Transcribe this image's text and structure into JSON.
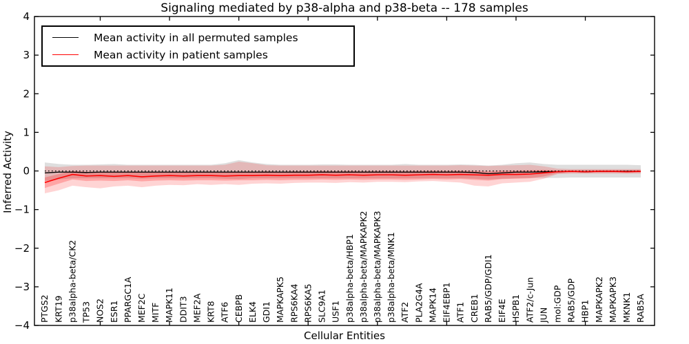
{
  "chart_data": {
    "type": "line",
    "title": "Signaling mediated by p38-alpha and p38-beta -- 178 samples",
    "xlabel": "Cellular Entities",
    "ylabel": "Inferred Activity",
    "ylim": [
      -4,
      4
    ],
    "grid": false,
    "ytick_values": [
      4,
      3,
      2,
      1,
      0,
      -1,
      -2,
      -3,
      -4
    ],
    "ytick_labels": [
      "4",
      "3",
      "2",
      "1",
      "0",
      "−1",
      "−2",
      "−3",
      "−4"
    ],
    "zero_line": {
      "value": 0,
      "style": "dotted",
      "color": "#000000"
    },
    "entities": [
      "PTGS2",
      "KRT19",
      "p38alpha-beta/CK2",
      "TP53",
      "NOS2",
      "ESR1",
      "PPARGC1A",
      "MEF2C",
      "MITF",
      "MAPK11",
      "DDIT3",
      "MEF2A",
      "KRT8",
      "ATF6",
      "CEBPB",
      "ELK4",
      "GDI1",
      "MAPKAPK5",
      "RPS6KA4",
      "RPS6KA5",
      "SLC9A1",
      "USF1",
      "p38alpha-beta/HBP1",
      "p38alpha-beta/MAPKAPK2",
      "p38alpha-beta/MAPKAPK3",
      "p38alpha-beta/MNK1",
      "ATF2",
      "PLA2G4A",
      "MAPK14",
      "EIF4EBP1",
      "ATF1",
      "CREB1",
      "RAB5/GDP/GDI1",
      "EIF4E",
      "HSPB1",
      "ATF2/c-Jun",
      "JUN",
      "mol:GDP",
      "RAB5/GDP",
      "HBP1",
      "MAPKAPK2",
      "MAPKAPK3",
      "MKNK1",
      "RAB5A"
    ],
    "series": [
      {
        "name": "Mean activity in all permuted samples",
        "color": "#000000",
        "values": [
          -0.05,
          -0.03,
          -0.03,
          -0.04,
          -0.03,
          -0.03,
          -0.03,
          -0.03,
          -0.03,
          -0.03,
          -0.03,
          -0.03,
          -0.03,
          -0.03,
          -0.03,
          -0.03,
          -0.03,
          -0.03,
          -0.03,
          -0.03,
          -0.03,
          -0.03,
          -0.03,
          -0.03,
          -0.03,
          -0.03,
          -0.03,
          -0.03,
          -0.03,
          -0.03,
          -0.03,
          -0.04,
          -0.07,
          -0.05,
          -0.03,
          -0.03,
          -0.02,
          -0.02,
          -0.01,
          -0.02,
          -0.01,
          -0.01,
          -0.01,
          -0.01
        ]
      },
      {
        "name": "Mean activity in patient samples",
        "color": "#ff0000",
        "values": [
          -0.3,
          -0.19,
          -0.09,
          -0.13,
          -0.12,
          -0.14,
          -0.12,
          -0.15,
          -0.13,
          -0.12,
          -0.13,
          -0.12,
          -0.12,
          -0.13,
          -0.12,
          -0.12,
          -0.11,
          -0.12,
          -0.11,
          -0.11,
          -0.1,
          -0.11,
          -0.1,
          -0.11,
          -0.1,
          -0.1,
          -0.11,
          -0.1,
          -0.09,
          -0.1,
          -0.09,
          -0.1,
          -0.11,
          -0.09,
          -0.09,
          -0.08,
          -0.05,
          -0.02,
          -0.01,
          -0.02,
          -0.01,
          -0.01,
          -0.02,
          -0.01
        ]
      }
    ],
    "bands": [
      {
        "name": "permuted-samples-band",
        "color": "#000000",
        "opacity": 0.13,
        "upper": [
          0.22,
          0.18,
          0.16,
          0.16,
          0.17,
          0.18,
          0.16,
          0.16,
          0.16,
          0.16,
          0.16,
          0.16,
          0.16,
          0.2,
          0.28,
          0.22,
          0.18,
          0.16,
          0.16,
          0.16,
          0.17,
          0.17,
          0.16,
          0.16,
          0.16,
          0.16,
          0.18,
          0.16,
          0.16,
          0.16,
          0.17,
          0.16,
          0.14,
          0.16,
          0.2,
          0.22,
          0.18,
          0.16,
          0.16,
          0.16,
          0.16,
          0.16,
          0.16,
          0.15
        ],
        "lower": [
          -0.26,
          -0.22,
          -0.19,
          -0.19,
          -0.19,
          -0.19,
          -0.19,
          -0.2,
          -0.19,
          -0.19,
          -0.19,
          -0.19,
          -0.19,
          -0.2,
          -0.21,
          -0.19,
          -0.19,
          -0.19,
          -0.19,
          -0.19,
          -0.19,
          -0.19,
          -0.19,
          -0.19,
          -0.19,
          -0.19,
          -0.19,
          -0.19,
          -0.19,
          -0.19,
          -0.19,
          -0.2,
          -0.22,
          -0.2,
          -0.19,
          -0.18,
          -0.18,
          -0.18,
          -0.17,
          -0.17,
          -0.17,
          -0.17,
          -0.17,
          -0.17
        ]
      },
      {
        "name": "patient-samples-outer-band",
        "color": "#ff0000",
        "opacity": 0.17,
        "upper": [
          0.12,
          0.1,
          0.13,
          0.14,
          0.14,
          0.14,
          0.14,
          0.14,
          0.14,
          0.14,
          0.14,
          0.14,
          0.14,
          0.16,
          0.24,
          0.2,
          0.15,
          0.14,
          0.14,
          0.14,
          0.14,
          0.14,
          0.14,
          0.14,
          0.14,
          0.14,
          0.14,
          0.14,
          0.14,
          0.14,
          0.15,
          0.14,
          0.13,
          0.14,
          0.15,
          0.16,
          0.12,
          0.06,
          0.05,
          0.05,
          0.05,
          0.05,
          0.05,
          0.05
        ],
        "lower": [
          -0.58,
          -0.5,
          -0.38,
          -0.42,
          -0.45,
          -0.4,
          -0.38,
          -0.42,
          -0.38,
          -0.36,
          -0.37,
          -0.34,
          -0.36,
          -0.34,
          -0.36,
          -0.33,
          -0.32,
          -0.33,
          -0.31,
          -0.3,
          -0.3,
          -0.31,
          -0.29,
          -0.3,
          -0.28,
          -0.28,
          -0.29,
          -0.27,
          -0.26,
          -0.28,
          -0.3,
          -0.38,
          -0.4,
          -0.32,
          -0.3,
          -0.28,
          -0.2,
          -0.08,
          -0.07,
          -0.07,
          -0.07,
          -0.07,
          -0.07,
          -0.07
        ]
      },
      {
        "name": "patient-samples-inner-band",
        "color": "#ff0000",
        "opacity": 0.22,
        "upper": [
          -0.17,
          -0.08,
          0.0,
          -0.02,
          -0.02,
          -0.03,
          -0.02,
          -0.04,
          -0.03,
          -0.02,
          -0.03,
          -0.02,
          -0.02,
          -0.03,
          -0.02,
          -0.02,
          -0.01,
          -0.02,
          -0.01,
          -0.01,
          0.0,
          -0.01,
          0.0,
          -0.01,
          0.0,
          0.0,
          -0.01,
          0.0,
          0.01,
          0.0,
          0.01,
          0.0,
          -0.01,
          0.01,
          0.01,
          0.02,
          0.03,
          0.02,
          0.02,
          0.02,
          0.02,
          0.02,
          0.02,
          0.02
        ],
        "lower": [
          -0.44,
          -0.33,
          -0.22,
          -0.26,
          -0.25,
          -0.26,
          -0.24,
          -0.27,
          -0.25,
          -0.24,
          -0.25,
          -0.24,
          -0.24,
          -0.25,
          -0.24,
          -0.24,
          -0.23,
          -0.24,
          -0.23,
          -0.23,
          -0.22,
          -0.23,
          -0.22,
          -0.23,
          -0.22,
          -0.22,
          -0.23,
          -0.22,
          -0.21,
          -0.22,
          -0.21,
          -0.23,
          -0.25,
          -0.21,
          -0.2,
          -0.19,
          -0.14,
          -0.06,
          -0.04,
          -0.05,
          -0.04,
          -0.04,
          -0.05,
          -0.04
        ]
      }
    ],
    "legend": {
      "position": "upper-left",
      "entries": [
        {
          "label": "Mean activity in all permuted samples",
          "color": "#000000"
        },
        {
          "label": "Mean activity in patient samples",
          "color": "#ff0000"
        }
      ]
    }
  }
}
